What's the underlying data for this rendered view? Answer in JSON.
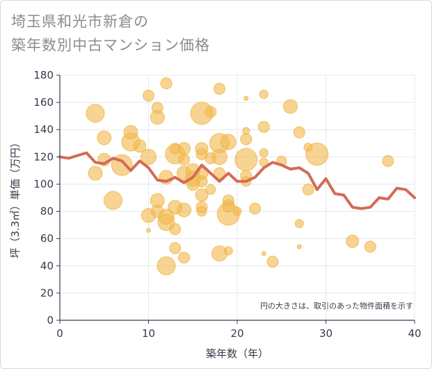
{
  "title_lines": [
    "埼玉県和光市新倉の",
    "築年数別中古マンション価格"
  ],
  "chart_data": {
    "type": "scatter",
    "title": "埼玉県和光市新倉の築年数別中古マンション価格",
    "xlabel": "築年数（年）",
    "ylabel": "坪（3.3㎡）単価（万円）",
    "xlim": [
      0,
      40
    ],
    "ylim": [
      0,
      180
    ],
    "xticks": [
      "0",
      "10",
      "20",
      "30",
      "40"
    ],
    "yticks": [
      "0",
      "20",
      "40",
      "60",
      "80",
      "100",
      "120",
      "140",
      "160",
      "180"
    ],
    "grid": true,
    "note": "円の大きさは、取引のあった物件面積を示す",
    "colors": {
      "bubble": "#f2b84b",
      "line": "#d36b55",
      "grid": "#e4e7ec",
      "text": "#333c4a"
    },
    "line_series": {
      "x": [
        0,
        1,
        2,
        3,
        4,
        5,
        6,
        7,
        8,
        9,
        10,
        11,
        12,
        13,
        14,
        15,
        16,
        17,
        18,
        19,
        20,
        21,
        22,
        23,
        24,
        25,
        26,
        27,
        28,
        29,
        30,
        31,
        32,
        33,
        34,
        35,
        36,
        37,
        38,
        39,
        40
      ],
      "y": [
        120,
        119,
        121,
        123,
        116,
        115,
        119,
        117,
        110,
        117,
        112,
        103,
        102,
        105,
        101,
        105,
        114,
        108,
        102,
        108,
        102,
        102,
        105,
        112,
        116,
        114,
        111,
        112,
        108,
        96,
        104,
        93,
        92,
        83,
        82,
        83,
        90,
        89,
        97,
        96,
        90
      ]
    },
    "bubbles": [
      {
        "x": 4,
        "y": 152,
        "s": 13
      },
      {
        "x": 5,
        "y": 134,
        "s": 10
      },
      {
        "x": 4,
        "y": 108,
        "s": 10
      },
      {
        "x": 5,
        "y": 118,
        "s": 9
      },
      {
        "x": 6,
        "y": 88,
        "s": 13
      },
      {
        "x": 7,
        "y": 114,
        "s": 15
      },
      {
        "x": 8,
        "y": 138,
        "s": 10
      },
      {
        "x": 8,
        "y": 131,
        "s": 13
      },
      {
        "x": 9,
        "y": 128,
        "s": 9
      },
      {
        "x": 10,
        "y": 120,
        "s": 11
      },
      {
        "x": 10,
        "y": 165,
        "s": 8
      },
      {
        "x": 11,
        "y": 156,
        "s": 8
      },
      {
        "x": 11,
        "y": 149,
        "s": 10
      },
      {
        "x": 12,
        "y": 174,
        "s": 8
      },
      {
        "x": 10,
        "y": 77,
        "s": 10
      },
      {
        "x": 10,
        "y": 66,
        "s": 3
      },
      {
        "x": 11,
        "y": 88,
        "s": 10
      },
      {
        "x": 11,
        "y": 80,
        "s": 9
      },
      {
        "x": 12,
        "y": 72,
        "s": 12
      },
      {
        "x": 12,
        "y": 76,
        "s": 11
      },
      {
        "x": 12,
        "y": 105,
        "s": 10
      },
      {
        "x": 12,
        "y": 40,
        "s": 13
      },
      {
        "x": 13,
        "y": 122,
        "s": 14
      },
      {
        "x": 13,
        "y": 126,
        "s": 8
      },
      {
        "x": 13,
        "y": 67,
        "s": 8
      },
      {
        "x": 13,
        "y": 53,
        "s": 8
      },
      {
        "x": 13,
        "y": 83,
        "s": 10
      },
      {
        "x": 14,
        "y": 126,
        "s": 9
      },
      {
        "x": 14,
        "y": 118,
        "s": 8
      },
      {
        "x": 14,
        "y": 108,
        "s": 10
      },
      {
        "x": 14,
        "y": 81,
        "s": 10
      },
      {
        "x": 14,
        "y": 46,
        "s": 8
      },
      {
        "x": 15,
        "y": 110,
        "s": 10
      },
      {
        "x": 15,
        "y": 104,
        "s": 11
      },
      {
        "x": 15,
        "y": 100,
        "s": 9
      },
      {
        "x": 16,
        "y": 152,
        "s": 16
      },
      {
        "x": 16,
        "y": 126,
        "s": 9
      },
      {
        "x": 16,
        "y": 122,
        "s": 8
      },
      {
        "x": 16,
        "y": 108,
        "s": 9
      },
      {
        "x": 16,
        "y": 102,
        "s": 8
      },
      {
        "x": 16,
        "y": 92,
        "s": 9
      },
      {
        "x": 16,
        "y": 83,
        "s": 8
      },
      {
        "x": 16,
        "y": 80,
        "s": 7
      },
      {
        "x": 17,
        "y": 153,
        "s": 8
      },
      {
        "x": 17,
        "y": 119,
        "s": 8
      },
      {
        "x": 17,
        "y": 96,
        "s": 7
      },
      {
        "x": 18,
        "y": 170,
        "s": 8
      },
      {
        "x": 18,
        "y": 130,
        "s": 14
      },
      {
        "x": 18,
        "y": 120,
        "s": 11
      },
      {
        "x": 18,
        "y": 108,
        "s": 8
      },
      {
        "x": 18,
        "y": 49,
        "s": 11
      },
      {
        "x": 19,
        "y": 131,
        "s": 11
      },
      {
        "x": 19,
        "y": 88,
        "s": 8
      },
      {
        "x": 19,
        "y": 84,
        "s": 9
      },
      {
        "x": 19,
        "y": 78,
        "s": 16
      },
      {
        "x": 19,
        "y": 51,
        "s": 6
      },
      {
        "x": 20,
        "y": 80,
        "s": 6
      },
      {
        "x": 21,
        "y": 163,
        "s": 3
      },
      {
        "x": 21,
        "y": 139,
        "s": 5
      },
      {
        "x": 21,
        "y": 133,
        "s": 8
      },
      {
        "x": 21,
        "y": 118,
        "s": 16
      },
      {
        "x": 21,
        "y": 106,
        "s": 8
      },
      {
        "x": 21,
        "y": 102,
        "s": 7
      },
      {
        "x": 22,
        "y": 82,
        "s": 8
      },
      {
        "x": 23,
        "y": 166,
        "s": 6
      },
      {
        "x": 23,
        "y": 142,
        "s": 8
      },
      {
        "x": 23,
        "y": 123,
        "s": 6
      },
      {
        "x": 23,
        "y": 116,
        "s": 6
      },
      {
        "x": 23,
        "y": 49,
        "s": 3
      },
      {
        "x": 24,
        "y": 43,
        "s": 8
      },
      {
        "x": 25,
        "y": 117,
        "s": 7
      },
      {
        "x": 26,
        "y": 157,
        "s": 10
      },
      {
        "x": 27,
        "y": 138,
        "s": 8
      },
      {
        "x": 27,
        "y": 71,
        "s": 6
      },
      {
        "x": 27,
        "y": 54,
        "s": 3
      },
      {
        "x": 28,
        "y": 127,
        "s": 6
      },
      {
        "x": 28,
        "y": 96,
        "s": 8
      },
      {
        "x": 29,
        "y": 122,
        "s": 16
      },
      {
        "x": 33,
        "y": 58,
        "s": 9
      },
      {
        "x": 35,
        "y": 54,
        "s": 8
      },
      {
        "x": 37,
        "y": 117,
        "s": 8
      }
    ]
  }
}
